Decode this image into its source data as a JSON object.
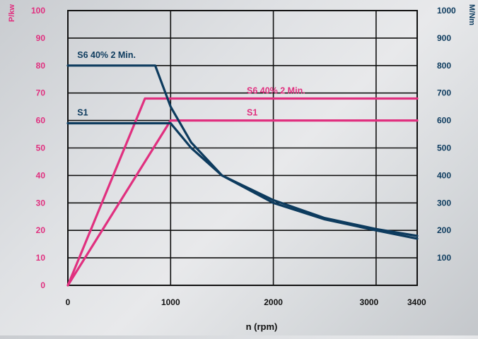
{
  "chart_data": {
    "type": "line",
    "xlabel": "n (rpm)",
    "ylabel_left": "P/kw",
    "ylabel_right": "M/Nm",
    "x_ticks": [
      0,
      1000,
      2000,
      3000,
      3400
    ],
    "y_left_ticks": [
      0,
      10,
      20,
      30,
      40,
      50,
      60,
      70,
      80,
      90,
      100
    ],
    "y_right_ticks": [
      100,
      200,
      300,
      400,
      500,
      600,
      700,
      800,
      900,
      1000
    ],
    "xlim": [
      0,
      3400
    ],
    "ylim_left": [
      0,
      100
    ],
    "ylim_right": [
      0,
      1000
    ],
    "grid": true,
    "colors": {
      "power": "#e0307f",
      "torque": "#0d3b5e",
      "left_axis": "#e0307f",
      "right_axis": "#0d3b5e",
      "x_axis": "#111111",
      "grid": "#111111"
    },
    "series": [
      {
        "name": "S6 40% 2 Min.",
        "quantity": "power",
        "axis": "left",
        "x": [
          0,
          750,
          3400
        ],
        "y": [
          0,
          68,
          68
        ]
      },
      {
        "name": "S1",
        "quantity": "power",
        "axis": "left",
        "x": [
          0,
          1000,
          3400
        ],
        "y": [
          0,
          60,
          60
        ]
      },
      {
        "name": "S6 40% 2 Min.",
        "quantity": "torque",
        "axis": "right",
        "x": [
          0,
          850,
          1000,
          1200,
          1500,
          2000,
          2500,
          3000,
          3400
        ],
        "y": [
          800,
          800,
          650,
          520,
          400,
          310,
          245,
          205,
          180
        ]
      },
      {
        "name": "S1",
        "quantity": "torque",
        "axis": "right",
        "x": [
          0,
          1000,
          1200,
          1500,
          2000,
          2500,
          3000,
          3400
        ],
        "y": [
          590,
          590,
          500,
          400,
          300,
          240,
          200,
          170
        ]
      }
    ],
    "annotations": [
      {
        "text": "S6 40% 2 Min.",
        "color": "#0d3b5e",
        "x": 50,
        "y": 82
      },
      {
        "text": "S1",
        "color": "#0d3b5e",
        "x": 50,
        "y": 61
      },
      {
        "text": "S6 40% 2 Min.",
        "color": "#e0307f",
        "x": 1700,
        "y": 69
      },
      {
        "text": "S1",
        "color": "#e0307f",
        "x": 1700,
        "y": 61
      }
    ]
  }
}
